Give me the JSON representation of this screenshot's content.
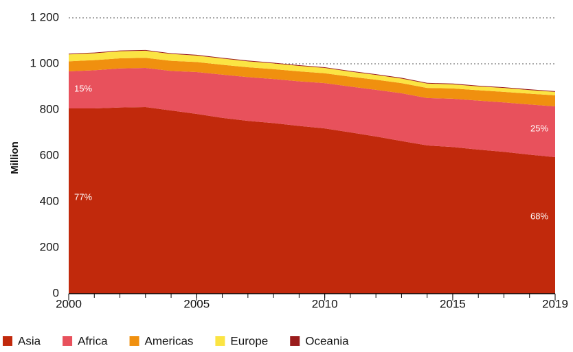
{
  "chart_data": {
    "type": "stacked_area",
    "y_label": "Million",
    "x": [
      2000,
      2001,
      2002,
      2003,
      2004,
      2005,
      2006,
      2007,
      2008,
      2009,
      2010,
      2011,
      2012,
      2013,
      2014,
      2015,
      2016,
      2017,
      2018,
      2019
    ],
    "xlim": [
      2000,
      2019
    ],
    "xticks": [
      2000,
      2005,
      2010,
      2015,
      2019
    ],
    "ylim": [
      0,
      1200
    ],
    "yticks": [
      0,
      200,
      400,
      600,
      800,
      {
        "value": 1000,
        "label": "1 000"
      },
      {
        "value": 1200,
        "label": "1 200"
      }
    ],
    "grid": true,
    "legend": "bottom",
    "series": [
      {
        "name": "Asia",
        "color": "#c1290c",
        "values": [
          806,
          806,
          810,
          812,
          797,
          782,
          765,
          752,
          742,
          730,
          719,
          702,
          684,
          664,
          645,
          638,
          627,
          617,
          605,
          594
        ]
      },
      {
        "name": "Africa",
        "color": "#e8515c",
        "values": [
          161,
          166,
          170,
          170,
          172,
          182,
          188,
          190,
          192,
          194,
          197,
          199,
          203,
          208,
          206,
          210,
          213,
          215,
          218,
          221
        ]
      },
      {
        "name": "Americas",
        "color": "#f0900f",
        "values": [
          44,
          44,
          44,
          44,
          44,
          44,
          43,
          43,
          43,
          43,
          43,
          43,
          44,
          44,
          44,
          45,
          45,
          46,
          47,
          48
        ]
      },
      {
        "name": "Europe",
        "color": "#fbe443",
        "values": [
          30,
          30,
          31,
          31,
          30,
          28,
          27,
          26,
          25,
          24,
          23,
          22,
          21,
          20,
          19,
          18,
          17,
          17,
          16,
          15
        ]
      },
      {
        "name": "Oceania",
        "color": "#9a1c1c",
        "values": [
          3,
          3,
          3,
          3,
          3,
          3,
          3,
          3,
          3,
          3,
          3,
          3,
          3,
          3,
          3,
          3,
          3,
          3,
          3,
          3
        ]
      }
    ],
    "annotations": [
      "15%",
      "77%",
      "25%",
      "68%"
    ]
  }
}
